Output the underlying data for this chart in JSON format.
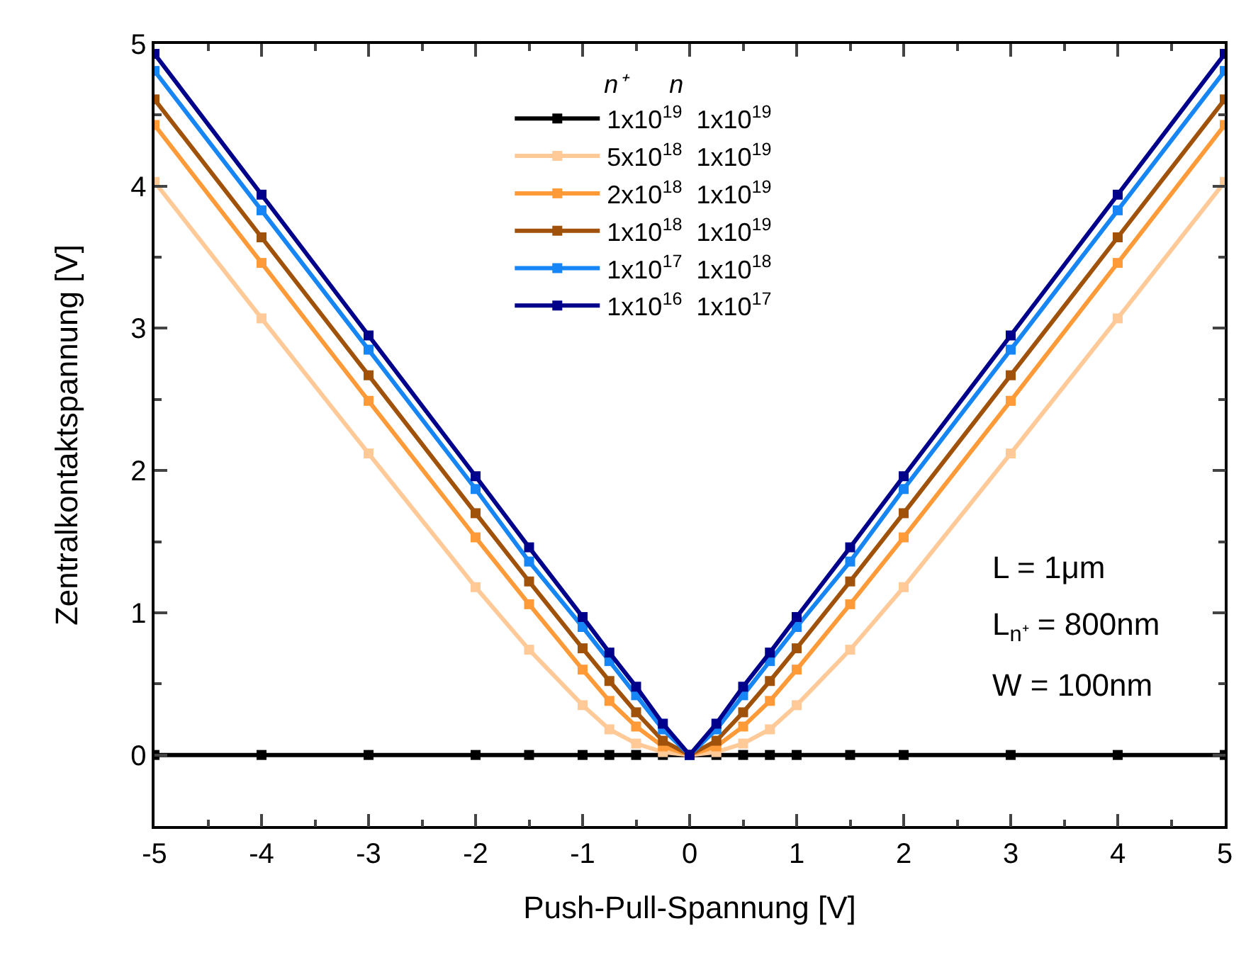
{
  "chart_data": {
    "type": "line",
    "xlabel": "Push-Pull-Spannung [V]",
    "ylabel": "Zentralkontaktspannung [V]",
    "legend_title": "n⁺      n",
    "x": [
      -5,
      -4,
      -3,
      -2,
      -1.5,
      -1,
      -0.75,
      -0.5,
      -0.25,
      0,
      0.25,
      0.5,
      0.75,
      1,
      1.5,
      2,
      3,
      4,
      5
    ],
    "series": [
      {
        "name": "1x10$^{19}$  1x10$^{19}$",
        "color": "#000000",
        "values": [
          0,
          0,
          0,
          0,
          0,
          0,
          0,
          0,
          0,
          0,
          0,
          0,
          0,
          0,
          0,
          0,
          0,
          0,
          0
        ]
      },
      {
        "name": "5x10$^{18}$  1x10$^{19}$",
        "color": "#ffc998",
        "values": [
          4.03,
          3.07,
          2.12,
          1.18,
          0.74,
          0.35,
          0.18,
          0.08,
          0.02,
          0,
          0.02,
          0.08,
          0.18,
          0.35,
          0.74,
          1.18,
          2.12,
          3.07,
          4.03
        ]
      },
      {
        "name": "2x10$^{18}$  1x10$^{19}$",
        "color": "#ff9a38",
        "values": [
          4.43,
          3.46,
          2.49,
          1.53,
          1.06,
          0.6,
          0.38,
          0.2,
          0.06,
          0,
          0.06,
          0.2,
          0.38,
          0.6,
          1.06,
          1.53,
          2.49,
          3.46,
          4.43
        ]
      },
      {
        "name": "1x10$^{18}$  1x10$^{19}$",
        "color": "#a0520a",
        "values": [
          4.61,
          3.64,
          2.67,
          1.7,
          1.22,
          0.75,
          0.52,
          0.3,
          0.1,
          0,
          0.1,
          0.3,
          0.52,
          0.75,
          1.22,
          1.7,
          2.67,
          3.64,
          4.61
        ]
      },
      {
        "name": "1x10$^{17}$  1x10$^{18}$",
        "color": "#1685f5",
        "values": [
          4.81,
          3.83,
          2.85,
          1.87,
          1.36,
          0.9,
          0.66,
          0.42,
          0.18,
          0,
          0.18,
          0.42,
          0.66,
          0.9,
          1.36,
          1.87,
          2.85,
          3.83,
          4.81
        ]
      },
      {
        "name": "1x10$^{16}$  1x10$^{17}$",
        "color": "#00008b",
        "values": [
          4.93,
          3.94,
          2.95,
          1.96,
          1.46,
          0.97,
          0.72,
          0.48,
          0.22,
          0,
          0.22,
          0.48,
          0.72,
          0.97,
          1.46,
          1.96,
          2.95,
          3.94,
          4.93
        ]
      }
    ],
    "xlim": [
      -5,
      5
    ],
    "xticks": [
      -5,
      -4,
      -3,
      -2,
      -1,
      0,
      1,
      2,
      3,
      4,
      5
    ],
    "ylim": [
      -0.5,
      5
    ],
    "yticks": [
      0,
      1,
      2,
      3,
      4,
      5
    ],
    "grid": false,
    "legend": "top",
    "marker": "square",
    "line_style": "solid",
    "annotations": [
      "L = 1μm",
      "L$_{n⁺}$ = 800nm",
      "W = 100nm"
    ]
  }
}
